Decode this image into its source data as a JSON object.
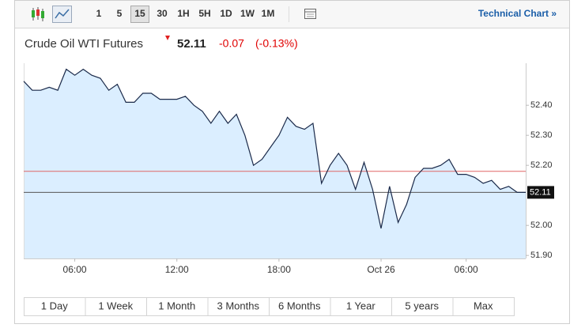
{
  "toolbar": {
    "intervals": [
      "1",
      "5",
      "15",
      "30",
      "1H",
      "5H",
      "1D",
      "1W",
      "1M"
    ],
    "selected": "15",
    "link": "Technical Chart »"
  },
  "chart_data": {
    "type": "line",
    "title": "Crude Oil WTI Futures",
    "price": "52.11",
    "change": "-0.07",
    "change_pct": "(-0.13%)",
    "categories": [
      null,
      null,
      null,
      null,
      null,
      null,
      "06:00",
      null,
      null,
      null,
      null,
      null,
      null,
      null,
      null,
      null,
      null,
      null,
      "12:00",
      null,
      null,
      null,
      null,
      null,
      null,
      null,
      null,
      null,
      null,
      null,
      "18:00",
      null,
      null,
      null,
      null,
      null,
      null,
      null,
      null,
      null,
      null,
      null,
      "Oct 26",
      null,
      null,
      null,
      null,
      null,
      null,
      null,
      null,
      null,
      "06:00",
      null,
      null,
      null,
      null,
      null,
      null,
      null
    ],
    "series": [
      {
        "name": "Crude Oil WTI Futures",
        "color": "#1b2a4a",
        "fill": "#dbeeff",
        "values": [
          52.48,
          52.45,
          52.45,
          52.46,
          52.45,
          52.52,
          52.5,
          52.52,
          52.5,
          52.49,
          52.45,
          52.47,
          52.41,
          52.41,
          52.44,
          52.44,
          52.42,
          52.42,
          52.42,
          52.43,
          52.4,
          52.38,
          52.34,
          52.38,
          52.34,
          52.37,
          52.3,
          52.2,
          52.22,
          52.26,
          52.3,
          52.36,
          52.33,
          52.32,
          52.34,
          52.14,
          52.2,
          52.24,
          52.2,
          52.12,
          52.21,
          52.12,
          51.99,
          52.13,
          52.01,
          52.07,
          52.16,
          52.19,
          52.19,
          52.2,
          52.22,
          52.17,
          52.17,
          52.16,
          52.14,
          52.15,
          52.12,
          52.13,
          52.11,
          52.11
        ]
      }
    ],
    "last_price": {
      "value": 52.11,
      "label": "52.11",
      "color": "#555555"
    },
    "prev_close": {
      "value": 52.18,
      "color": "#e06666"
    },
    "ylim": [
      51.89,
      52.54
    ],
    "yticks": [
      {
        "value": 51.9,
        "label": "51.90"
      },
      {
        "value": 52.0,
        "label": "52.00"
      },
      {
        "value": 52.2,
        "label": "52.20"
      },
      {
        "value": 52.3,
        "label": "52.30"
      },
      {
        "value": 52.4,
        "label": "52.40"
      }
    ]
  },
  "ranges": [
    "1 Day",
    "1 Week",
    "1 Month",
    "3 Months",
    "6 Months",
    "1 Year",
    "5 years",
    "Max"
  ]
}
